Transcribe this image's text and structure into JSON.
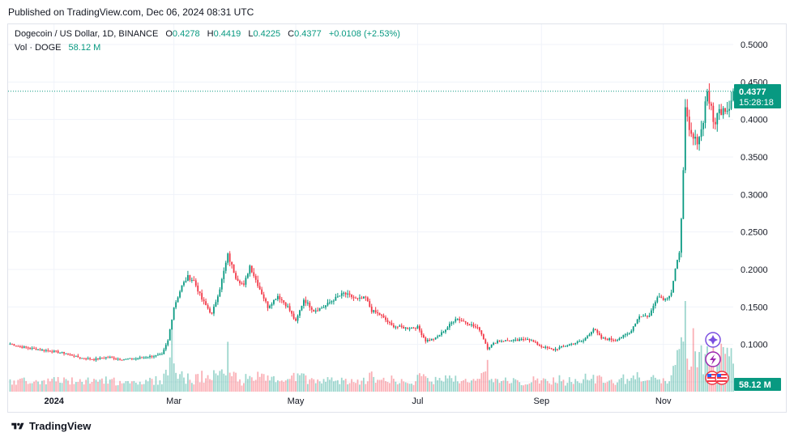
{
  "header": {
    "published": "Published on TradingView.com, Dec 06, 2024 08:31 UTC"
  },
  "legend": {
    "symbol": "Dogecoin / US Dollar, 1D, BINANCE",
    "open_label": "O",
    "open": "0.4278",
    "high_label": "H",
    "high": "0.4419",
    "low_label": "L",
    "low": "0.4225",
    "close_label": "C",
    "close": "0.4377",
    "change": "+0.0108 (+2.53%)",
    "vol_label": "Vol · DOGE",
    "vol_value": "58.12 M"
  },
  "price_tag": {
    "price": "0.4377",
    "countdown": "15:28:18"
  },
  "volume_tag": {
    "value": "58.12 M"
  },
  "footer": {
    "brand": "TradingView"
  },
  "colors": {
    "up": "#089981",
    "down": "#f23645",
    "grid": "#f0f3fa",
    "text": "#131722",
    "tag": "#089981"
  },
  "icons": [
    "tradingview-logo-icon",
    "event-icon",
    "lightning-icon",
    "us-flag-icon"
  ],
  "chart_data": {
    "type": "candlestick",
    "title": "Dogecoin / US Dollar, 1D, BINANCE",
    "x_tick_labels": [
      "2024",
      "Mar",
      "May",
      "Jul",
      "Sep",
      "Nov"
    ],
    "y_tick_labels": [
      "0.0500",
      "0.1000",
      "0.1500",
      "0.2000",
      "0.2500",
      "0.3000",
      "0.3500",
      "0.4000",
      "0.4500",
      "0.5000"
    ],
    "ylim": [
      0.037,
      0.527
    ],
    "xlim": [
      "2023-12-09",
      "2024-12-06"
    ],
    "last_close": 0.4377,
    "anchors": [
      [
        "2023-12-10",
        0.101
      ],
      [
        "2023-12-15",
        0.097
      ],
      [
        "2023-12-22",
        0.094
      ],
      [
        "2023-12-31",
        0.091
      ],
      [
        "2024-01-07",
        0.088
      ],
      [
        "2024-01-14",
        0.082
      ],
      [
        "2024-01-21",
        0.08
      ],
      [
        "2024-01-28",
        0.083
      ],
      [
        "2024-02-04",
        0.08
      ],
      [
        "2024-02-11",
        0.081
      ],
      [
        "2024-02-18",
        0.084
      ],
      [
        "2024-02-24",
        0.086
      ],
      [
        "2024-02-27",
        0.105
      ],
      [
        "2024-03-01",
        0.15
      ],
      [
        "2024-03-05",
        0.178
      ],
      [
        "2024-03-08",
        0.19
      ],
      [
        "2024-03-11",
        0.185
      ],
      [
        "2024-03-15",
        0.16
      ],
      [
        "2024-03-20",
        0.14
      ],
      [
        "2024-03-24",
        0.175
      ],
      [
        "2024-03-28",
        0.219
      ],
      [
        "2024-04-01",
        0.19
      ],
      [
        "2024-04-05",
        0.178
      ],
      [
        "2024-04-08",
        0.205
      ],
      [
        "2024-04-12",
        0.18
      ],
      [
        "2024-04-17",
        0.15
      ],
      [
        "2024-04-22",
        0.165
      ],
      [
        "2024-04-27",
        0.15
      ],
      [
        "2024-05-01",
        0.13
      ],
      [
        "2024-05-05",
        0.16
      ],
      [
        "2024-05-10",
        0.145
      ],
      [
        "2024-05-15",
        0.15
      ],
      [
        "2024-05-20",
        0.16
      ],
      [
        "2024-05-25",
        0.168
      ],
      [
        "2024-06-01",
        0.16
      ],
      [
        "2024-06-05",
        0.162
      ],
      [
        "2024-06-08",
        0.145
      ],
      [
        "2024-06-12",
        0.14
      ],
      [
        "2024-06-18",
        0.125
      ],
      [
        "2024-06-25",
        0.122
      ],
      [
        "2024-07-01",
        0.123
      ],
      [
        "2024-07-05",
        0.105
      ],
      [
        "2024-07-10",
        0.108
      ],
      [
        "2024-07-15",
        0.12
      ],
      [
        "2024-07-20",
        0.135
      ],
      [
        "2024-07-25",
        0.13
      ],
      [
        "2024-08-01",
        0.12
      ],
      [
        "2024-08-05",
        0.095
      ],
      [
        "2024-08-10",
        0.105
      ],
      [
        "2024-08-20",
        0.105
      ],
      [
        "2024-08-25",
        0.108
      ],
      [
        "2024-09-01",
        0.097
      ],
      [
        "2024-09-07",
        0.093
      ],
      [
        "2024-09-15",
        0.1
      ],
      [
        "2024-09-22",
        0.105
      ],
      [
        "2024-09-27",
        0.121
      ],
      [
        "2024-10-01",
        0.108
      ],
      [
        "2024-10-08",
        0.106
      ],
      [
        "2024-10-15",
        0.115
      ],
      [
        "2024-10-20",
        0.138
      ],
      [
        "2024-10-25",
        0.138
      ],
      [
        "2024-10-29",
        0.165
      ],
      [
        "2024-11-02",
        0.16
      ],
      [
        "2024-11-05",
        0.17
      ],
      [
        "2024-11-07",
        0.2
      ],
      [
        "2024-11-09",
        0.22
      ],
      [
        "2024-11-10",
        0.27
      ],
      [
        "2024-11-11",
        0.34
      ],
      [
        "2024-11-12",
        0.41
      ],
      [
        "2024-11-14",
        0.38
      ],
      [
        "2024-11-17",
        0.37
      ],
      [
        "2024-11-20",
        0.385
      ],
      [
        "2024-11-23",
        0.44
      ],
      [
        "2024-11-26",
        0.395
      ],
      [
        "2024-11-29",
        0.41
      ],
      [
        "2024-12-01",
        0.42
      ],
      [
        "2024-12-03",
        0.415
      ],
      [
        "2024-12-05",
        0.43
      ],
      [
        "2024-12-06",
        0.4377
      ]
    ],
    "volume_peaks": [
      [
        "2024-02-29",
        0.7
      ],
      [
        "2024-03-28",
        0.55
      ],
      [
        "2024-08-05",
        0.35
      ],
      [
        "2024-11-10",
        0.6
      ],
      [
        "2024-11-12",
        1.0
      ],
      [
        "2024-11-16",
        0.7
      ],
      [
        "2024-11-23",
        0.5
      ]
    ]
  }
}
